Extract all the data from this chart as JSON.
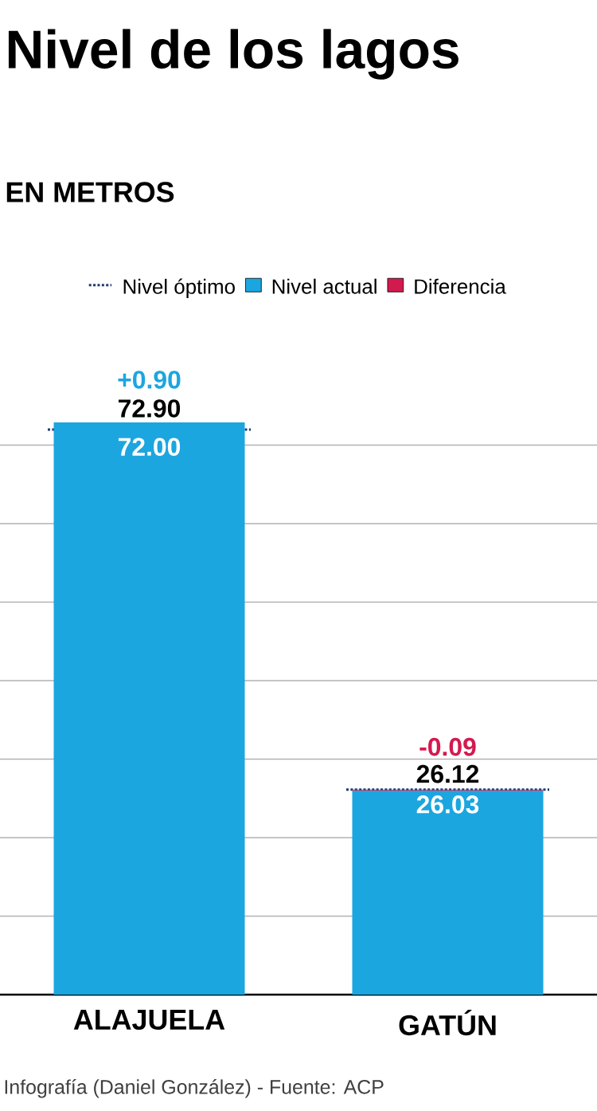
{
  "chart_data": {
    "type": "bar",
    "title": "Nivel de los lagos",
    "subtitle": "EN METROS",
    "categories": [
      "ALAJUELA",
      "GATÚN"
    ],
    "legend_title": "Nivel óptimo",
    "series": [
      {
        "name": "Nivel actual",
        "color": "#1ba6e0",
        "values": [
          72.9,
          26.03
        ],
        "value_labels": [
          "72.90",
          "26.03"
        ]
      },
      {
        "name": "Diferencia",
        "color": "#d31a4f",
        "values": [
          null,
          0.09
        ]
      }
    ],
    "stacked": true,
    "ref_lines": [
      {
        "axis": "y",
        "value": 72.0,
        "label": "72.00",
        "color": "#1f3a6e",
        "line_style": "dotted"
      },
      {
        "axis": "y",
        "value": 26.12,
        "label": "26.12",
        "color": "#1f3a6e",
        "line_style": "dotted"
      }
    ],
    "tick_labels": "x",
    "grid": "y",
    "legend": "top",
    "annotations": [
      {
        "text": "+0.90",
        "x": "ALAJUELA",
        "y": 72.9
      },
      {
        "text": "-0.09",
        "x": "GATÚN",
        "y": 26.12
      },
      "Infografía (Daniel González) - Fuente: ACP"
    ]
  }
}
